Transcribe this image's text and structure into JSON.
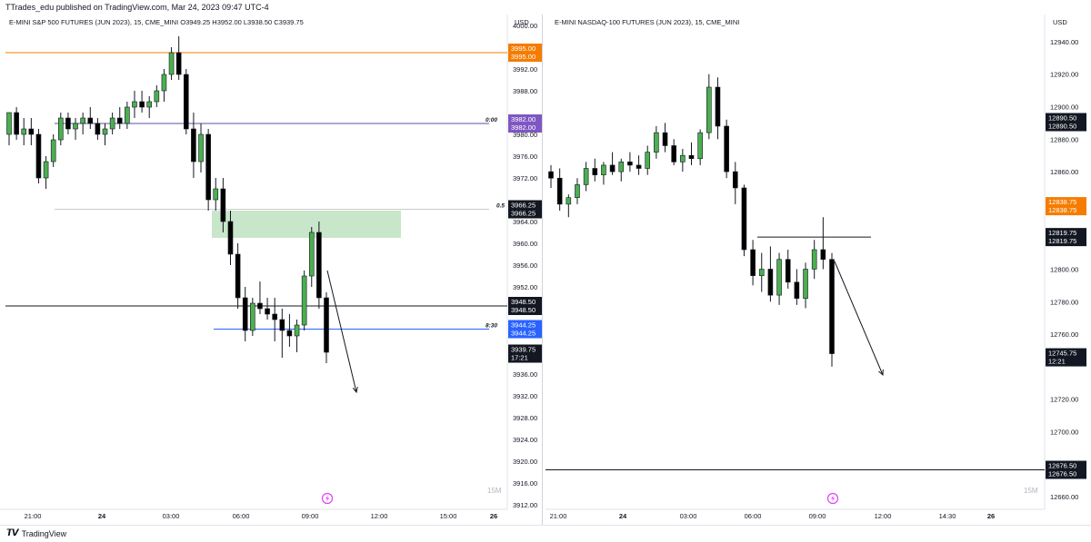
{
  "publication_line": "TTrades_edu published on TradingView.com, Mar 24, 2023 09:47 UTC-4",
  "footer": {
    "logo_glyph": "𝙏𝙑",
    "brand": "TradingView"
  },
  "colors": {
    "bull": "#4caf50",
    "bear": "#000000",
    "fvg_fill": "#c8e6c9",
    "resistance": "#f57c00",
    "midnight": "#5c4caf",
    "blue_level": "#2962ff"
  },
  "left": {
    "legend": "E-MINI S&P 500 FUTURES (JUN 2023), 15, CME_MINI   O3949.25  H3952.00  L3938.50  C3939.75",
    "currency": "USD",
    "timeframe_label": "15M",
    "price_range": [
      3912,
      4000
    ],
    "price_ticks": [
      "4000.00",
      "3992.00",
      "3988.00",
      "3980.00",
      "3976.00",
      "3972.00",
      "3964.00",
      "3960.00",
      "3956.00",
      "3952.00",
      "3936.00",
      "3932.00",
      "3928.00",
      "3924.00",
      "3920.00",
      "3916.00",
      "3912.00"
    ],
    "time_labels": [
      "21:00",
      "24",
      "03:00",
      "06:00",
      "09:00",
      "12:00",
      "15:00",
      "26"
    ],
    "levels": [
      {
        "price": 3995.0,
        "kind": "resistance",
        "tag": [
          "3995.00",
          "3995.00"
        ],
        "tag_color": "#f57c00"
      },
      {
        "price": 3982.0,
        "kind": "midnight",
        "label": "0:00",
        "tag": [
          "3982.00",
          "3982.00"
        ],
        "tag_color": "#7e57c2"
      },
      {
        "price": 3966.25,
        "kind": "half",
        "label": "0.5",
        "tag": [
          "3966.25",
          "3966.25"
        ],
        "tag_color": "#131722"
      },
      {
        "price": 3948.5,
        "kind": "black",
        "tag": [
          "3948.50",
          "3948.50"
        ],
        "tag_color": "#131722"
      },
      {
        "price": 3944.25,
        "kind": "blue",
        "label": "8:30",
        "tag": [
          "3944.25",
          "3944.25"
        ],
        "tag_color": "#2962ff"
      },
      {
        "price": 3939.75,
        "kind": "last",
        "tag": [
          "3939.75",
          "17:21"
        ],
        "tag_color": "#131722"
      }
    ],
    "fvg": {
      "top": 3966.0,
      "bottom": 3961.0
    }
  },
  "right": {
    "legend": "E-MINI NASDAQ-100 FUTURES (JUN 2023), 15, CME_MINI",
    "currency": "USD",
    "timeframe_label": "15M",
    "price_range": [
      12655,
      12950
    ],
    "price_ticks": [
      "12940.00",
      "12920.00",
      "12900.00",
      "12880.00",
      "12860.00",
      "12800.00",
      "12780.00",
      "12760.00",
      "12720.00",
      "12700.00",
      "12660.00"
    ],
    "time_labels": [
      "21:00",
      "24",
      "03:00",
      "06:00",
      "09:00",
      "12:00",
      "14:30",
      "26"
    ],
    "levels": [
      {
        "price": 12890.5,
        "kind": "tag_only",
        "tag": [
          "12890.50",
          "12890.50"
        ],
        "tag_color": "#131722"
      },
      {
        "price": 12838.75,
        "kind": "tag_only",
        "tag": [
          "12838.75",
          "12838.75"
        ],
        "tag_color": "#f57c00"
      },
      {
        "price": 12819.75,
        "kind": "black_short",
        "tag": [
          "12819.75",
          "12819.75"
        ],
        "tag_color": "#131722"
      },
      {
        "price": 12745.75,
        "kind": "last",
        "tag": [
          "12745.75",
          "12:21"
        ],
        "tag_color": "#131722"
      },
      {
        "price": 12676.5,
        "kind": "black",
        "tag": [
          "12676.50",
          "12676.50"
        ],
        "tag_color": "#131722"
      }
    ]
  },
  "chart_data": [
    {
      "type": "candlestick",
      "title": "E-MINI S&P 500 FUTURES (JUN 2023), 15, CME_MINI",
      "ylim": [
        3912,
        4000
      ],
      "candles": [
        [
          3980,
          3984,
          3978,
          3984
        ],
        [
          3984,
          3985,
          3979,
          3980
        ],
        [
          3980,
          3983,
          3978,
          3981
        ],
        [
          3981,
          3983,
          3978,
          3980
        ],
        [
          3980,
          3981,
          3971,
          3972
        ],
        [
          3972,
          3976,
          3970,
          3975
        ],
        [
          3975,
          3980,
          3974,
          3979
        ],
        [
          3979,
          3984,
          3978,
          3983
        ],
        [
          3983,
          3984,
          3980,
          3981
        ],
        [
          3981,
          3983,
          3979,
          3982
        ],
        [
          3982,
          3984,
          3980,
          3983
        ],
        [
          3983,
          3985,
          3981,
          3982
        ],
        [
          3982,
          3983,
          3979,
          3980
        ],
        [
          3980,
          3982,
          3978,
          3981
        ],
        [
          3981,
          3984,
          3980,
          3983
        ],
        [
          3983,
          3985,
          3981,
          3982
        ],
        [
          3982,
          3986,
          3981,
          3985
        ],
        [
          3985,
          3988,
          3983,
          3986
        ],
        [
          3986,
          3988,
          3984,
          3985
        ],
        [
          3985,
          3987,
          3983,
          3986
        ],
        [
          3986,
          3989,
          3985,
          3988
        ],
        [
          3988,
          3992,
          3986,
          3991
        ],
        [
          3991,
          3996,
          3990,
          3995
        ],
        [
          3995,
          3998,
          3990,
          3991
        ],
        [
          3991,
          3992,
          3980,
          3981
        ],
        [
          3981,
          3984,
          3972,
          3975
        ],
        [
          3975,
          3982,
          3973,
          3980
        ],
        [
          3980,
          3981,
          3966,
          3968
        ],
        [
          3968,
          3972,
          3966,
          3970
        ],
        [
          3970,
          3972,
          3962,
          3964
        ],
        [
          3964,
          3966,
          3956,
          3958
        ],
        [
          3958,
          3960,
          3948,
          3950
        ],
        [
          3950,
          3952,
          3942,
          3944
        ],
        [
          3944,
          3950,
          3943,
          3949
        ],
        [
          3949,
          3953,
          3947,
          3948
        ],
        [
          3948,
          3950,
          3946,
          3947
        ],
        [
          3947,
          3950,
          3942,
          3946
        ],
        [
          3946,
          3948,
          3939,
          3944
        ],
        [
          3944,
          3947,
          3941,
          3943
        ],
        [
          3943,
          3946,
          3940,
          3945
        ],
        [
          3945,
          3955,
          3944,
          3954
        ],
        [
          3954,
          3963,
          3952,
          3962
        ],
        [
          3962,
          3964,
          3948,
          3950
        ],
        [
          3950,
          3951,
          3938,
          3940
        ]
      ]
    },
    {
      "type": "candlestick",
      "title": "E-MINI NASDAQ-100 FUTURES (JUN 2023), 15, CME_MINI",
      "ylim": [
        12655,
        12950
      ],
      "candles": [
        [
          12860,
          12864,
          12850,
          12856
        ],
        [
          12856,
          12862,
          12836,
          12840
        ],
        [
          12840,
          12846,
          12832,
          12844
        ],
        [
          12844,
          12856,
          12840,
          12852
        ],
        [
          12852,
          12866,
          12848,
          12862
        ],
        [
          12862,
          12868,
          12854,
          12858
        ],
        [
          12858,
          12866,
          12852,
          12864
        ],
        [
          12864,
          12872,
          12858,
          12860
        ],
        [
          12860,
          12868,
          12854,
          12866
        ],
        [
          12866,
          12872,
          12860,
          12864
        ],
        [
          12864,
          12870,
          12858,
          12862
        ],
        [
          12862,
          12876,
          12858,
          12872
        ],
        [
          12872,
          12888,
          12868,
          12884
        ],
        [
          12884,
          12890,
          12872,
          12876
        ],
        [
          12876,
          12880,
          12864,
          12866
        ],
        [
          12866,
          12874,
          12860,
          12870
        ],
        [
          12870,
          12878,
          12864,
          12868
        ],
        [
          12868,
          12886,
          12864,
          12884
        ],
        [
          12884,
          12920,
          12880,
          12912
        ],
        [
          12912,
          12918,
          12880,
          12888
        ],
        [
          12888,
          12892,
          12856,
          12860
        ],
        [
          12860,
          12866,
          12840,
          12850
        ],
        [
          12850,
          12852,
          12808,
          12812
        ],
        [
          12812,
          12818,
          12790,
          12796
        ],
        [
          12796,
          12810,
          12786,
          12800
        ],
        [
          12800,
          12814,
          12780,
          12784
        ],
        [
          12784,
          12810,
          12778,
          12806
        ],
        [
          12806,
          12812,
          12788,
          12792
        ],
        [
          12792,
          12800,
          12778,
          12782
        ],
        [
          12782,
          12804,
          12776,
          12800
        ],
        [
          12800,
          12818,
          12794,
          12812
        ],
        [
          12812,
          12832,
          12800,
          12806
        ],
        [
          12806,
          12810,
          12740,
          12748
        ]
      ]
    }
  ]
}
